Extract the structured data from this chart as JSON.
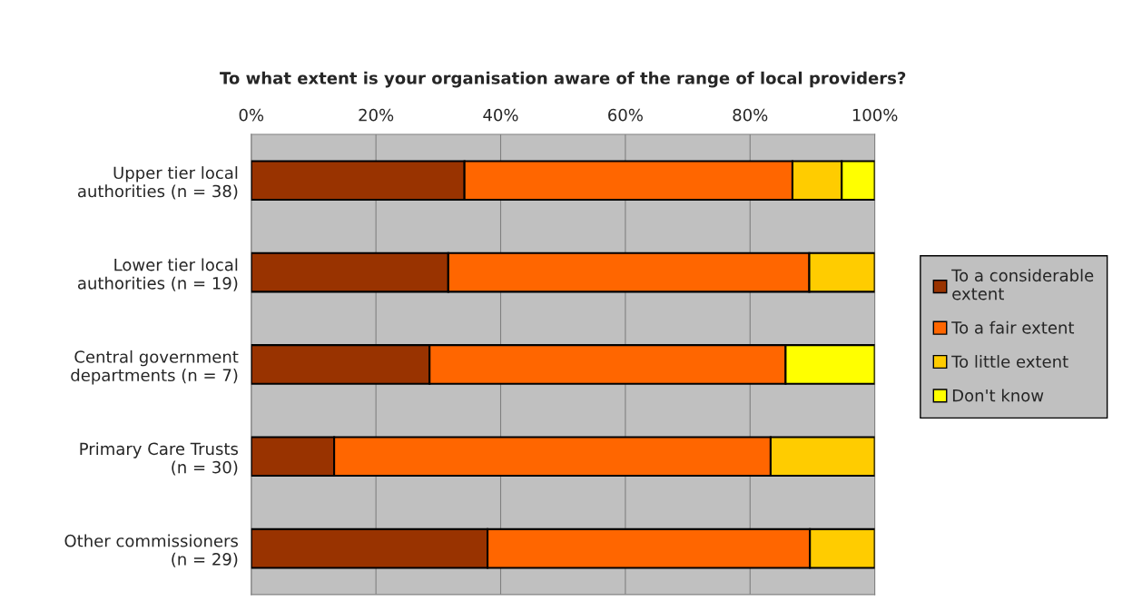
{
  "chart_data": {
    "type": "bar",
    "orientation": "horizontal",
    "stacked": true,
    "title": "To what extent is your organisation aware of the range of local providers?",
    "categories": [
      "Upper tier local\nauthorities (n = 38)",
      "Lower tier local\nauthorities (n = 19)",
      "Central government\ndepartments (n = 7)",
      "Primary Care Trusts\n(n = 30)",
      "Other commissioners\n(n = 29)"
    ],
    "series": [
      {
        "name": "To a considerable extent",
        "color": "#993300",
        "values": [
          34.2,
          31.6,
          28.6,
          13.3,
          37.9
        ]
      },
      {
        "name": "To a fair extent",
        "color": "#ff6600",
        "values": [
          52.6,
          57.9,
          57.1,
          70.0,
          51.7
        ]
      },
      {
        "name": "To little extent",
        "color": "#ffcc00",
        "values": [
          7.9,
          10.5,
          null,
          16.7,
          10.4
        ]
      },
      {
        "name": "Don't know",
        "color": "#ffff00",
        "values": [
          5.3,
          null,
          14.3,
          null,
          null
        ]
      }
    ],
    "xlim": [
      0,
      100
    ],
    "xticks": [
      {
        "value": 0,
        "label": "0%"
      },
      {
        "value": 20,
        "label": "20%"
      },
      {
        "value": 40,
        "label": "40%"
      },
      {
        "value": 60,
        "label": "60%"
      },
      {
        "value": 80,
        "label": "80%"
      },
      {
        "value": 100,
        "label": "100%"
      }
    ],
    "grid": "x",
    "legend": "right"
  }
}
